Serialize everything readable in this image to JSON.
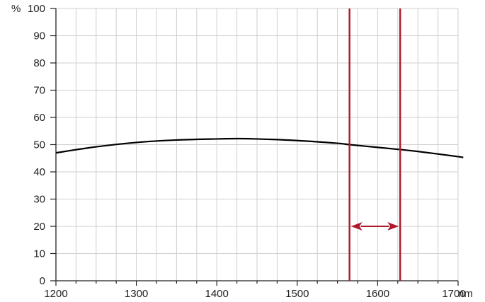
{
  "chart_data": {
    "type": "line",
    "x_ticks": [
      1200,
      1300,
      1400,
      1500,
      1600,
      1700
    ],
    "y_ticks": [
      0,
      10,
      20,
      30,
      40,
      50,
      60,
      70,
      80,
      90,
      100
    ],
    "x_unit": "nm",
    "y_unit": "%",
    "xlim": [
      1200,
      1700
    ],
    "ylim": [
      0,
      100
    ],
    "x_minor_step": 25,
    "grid": true,
    "series": [
      {
        "x": [
          1200,
          1250,
          1300,
          1350,
          1400,
          1425,
          1450,
          1500,
          1550,
          1565,
          1600,
          1628,
          1650,
          1700,
          1706
        ],
        "y": [
          47,
          49.2,
          50.8,
          51.7,
          52.1,
          52.2,
          52.1,
          51.5,
          50.5,
          50,
          49,
          48.2,
          47.5,
          45.6,
          45.2
        ],
        "color": "#000000"
      }
    ],
    "annotations": {
      "vertical_lines": [
        1565,
        1628
      ],
      "arrow": {
        "from": 1565,
        "to": 1628,
        "y": 20
      },
      "color": "#b0182b"
    }
  }
}
